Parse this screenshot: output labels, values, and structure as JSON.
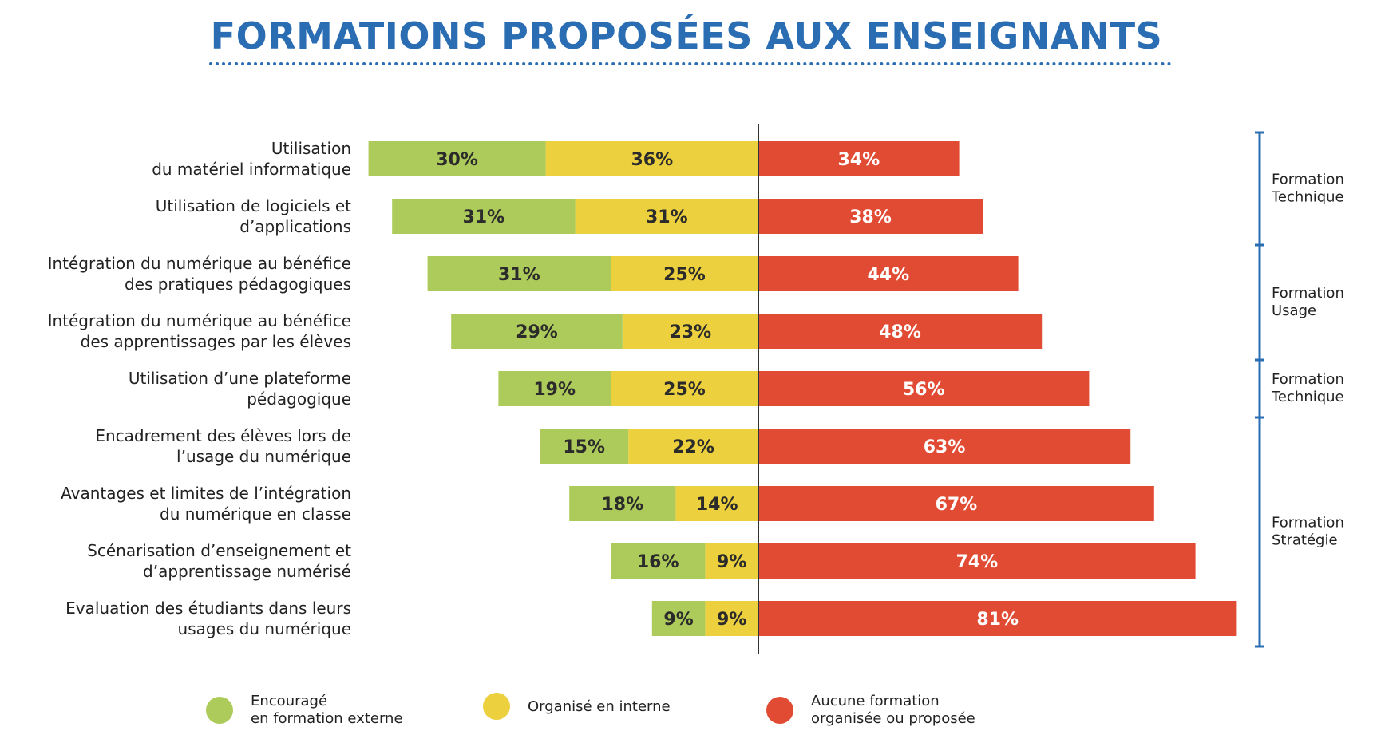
{
  "chart_data": {
    "type": "bar",
    "title": "FORMATIONS PROPOSÉES AUX ENSEIGNANTS",
    "categories": [
      [
        "Utilisation",
        "du matériel informatique"
      ],
      [
        "Utilisation de logiciels et",
        "d’applications"
      ],
      [
        "Intégration du numérique au bénéfice",
        "des pratiques pédagogiques"
      ],
      [
        "Intégration du numérique au bénéfice",
        "des apprentissages par les élèves"
      ],
      [
        "Utilisation d’une plateforme",
        "pédagogique"
      ],
      [
        "Encadrement des élèves lors de",
        "l’usage du numérique"
      ],
      [
        "Avantages et limites de l’intégration",
        "du numérique en classe"
      ],
      [
        "Scénarisation d’enseignement et",
        "d’apprentissage numérisé"
      ],
      [
        "Evaluation des étudiants dans leurs",
        "usages du numérique"
      ]
    ],
    "series": [
      {
        "name": "Encouragé en formation externe",
        "color": "#adcb5a",
        "text_color": "#2b2b2b",
        "values": [
          30,
          31,
          31,
          29,
          19,
          15,
          18,
          16,
          9
        ],
        "labels": [
          "30%",
          "31%",
          "31%",
          "29%",
          "19%",
          "15%",
          "18%",
          "16%",
          "9%"
        ]
      },
      {
        "name": "Organisé en interne",
        "color": "#ecd03d",
        "text_color": "#2b2b2b",
        "values": [
          36,
          31,
          25,
          23,
          25,
          22,
          14,
          9,
          9
        ],
        "labels": [
          "36%",
          "31%",
          "25%",
          "23%",
          "25%",
          "22%",
          "14%",
          "9%",
          "9%"
        ]
      },
      {
        "name": "Aucune formation organisée ou proposée",
        "color": "#e24b33",
        "text_color": "#ffffff",
        "values": [
          34,
          38,
          44,
          48,
          56,
          63,
          67,
          74,
          81
        ],
        "labels": [
          "34%",
          "38%",
          "44%",
          "48%",
          "56%",
          "63%",
          "67%",
          "74%",
          "81%"
        ]
      }
    ],
    "groups": [
      {
        "label": [
          "Formation",
          "Technique"
        ],
        "rows": [
          0,
          1
        ]
      },
      {
        "label": [
          "Formation",
          "Usage"
        ],
        "rows": [
          2,
          3
        ]
      },
      {
        "label": [
          "Formation",
          "Technique"
        ],
        "rows": [
          4,
          4
        ]
      },
      {
        "label": [
          "Formation",
          "Stratégie"
        ],
        "rows": [
          5,
          8
        ]
      }
    ],
    "legend": [
      {
        "label": "Encouragé\nen formation externe",
        "color": "#adcb5a"
      },
      {
        "label": "Organisé en interne",
        "color": "#ecd03d"
      },
      {
        "label": "Aucune formation\norganisée ou proposée",
        "color": "#e24b33"
      }
    ],
    "accent_color": "#2a6db3",
    "legend_position": "bottom"
  }
}
